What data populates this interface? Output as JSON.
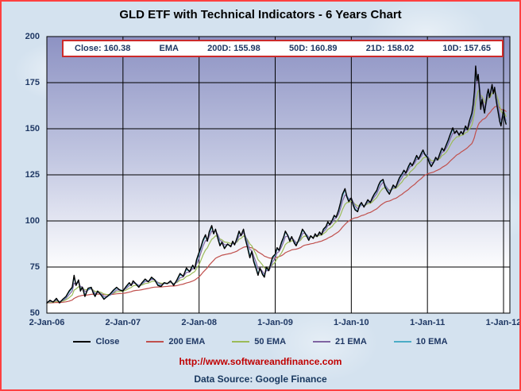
{
  "page": {
    "title": "GLD ETF with Technical Indicators - 6 Years Chart",
    "footer_url": "http://www.softwareandfinance.com",
    "footer_source": "Data Source: Google Finance"
  },
  "info_box": {
    "close_label": "Close: 160.38",
    "ema_label": "EMA",
    "d200": "200D: 155.98",
    "d50": "50D: 160.89",
    "d21": "21D: 158.02",
    "d10": "10D: 157.65"
  },
  "chart_data": {
    "type": "line",
    "title": "GLD ETF with Technical Indicators - 6 Years Chart",
    "ylim": [
      50,
      200
    ],
    "y_ticks": [
      50,
      75,
      100,
      125,
      150,
      175,
      200
    ],
    "x_tick_labels": [
      "2-Jan-06",
      "2-Jan-07",
      "2-Jan-08",
      "1-Jan-09",
      "1-Jan-10",
      "1-Jan-11",
      "1-Jan-12"
    ],
    "x_tick_months": [
      0,
      12,
      24,
      36,
      48,
      60,
      72
    ],
    "x_range_months": [
      0,
      73
    ],
    "grid": true,
    "legend_position": "bottom",
    "close_latest": 160.38,
    "ema_latest": {
      "200D": 155.98,
      "50D": 160.89,
      "21D": 158.02,
      "10D": 157.65
    },
    "series": [
      {
        "name": "Close",
        "color": "#000000",
        "kind": "close"
      },
      {
        "name": "200 EMA",
        "color": "#C0504D",
        "kind": "ema",
        "alpha": 0.07
      },
      {
        "name": "50 EMA",
        "color": "#9BBB59",
        "kind": "ema",
        "alpha": 0.25
      },
      {
        "name": "21 EMA",
        "color": "#8064A2",
        "kind": "ema",
        "alpha": 0.5
      },
      {
        "name": "10 EMA",
        "color": "#4BACC6",
        "kind": "ema",
        "alpha": 0.8
      }
    ],
    "points": [
      [
        0,
        55.5
      ],
      [
        0.5,
        57
      ],
      [
        1,
        56
      ],
      [
        1.5,
        58
      ],
      [
        2,
        55.5
      ],
      [
        2.5,
        57.5
      ],
      [
        3,
        59
      ],
      [
        3.5,
        62
      ],
      [
        4,
        64
      ],
      [
        4.3,
        70.5
      ],
      [
        4.6,
        65
      ],
      [
        5,
        68
      ],
      [
        5.3,
        62
      ],
      [
        5.6,
        64
      ],
      [
        6,
        59
      ],
      [
        6.5,
        63.5
      ],
      [
        7,
        64
      ],
      [
        7.3,
        61
      ],
      [
        7.6,
        59
      ],
      [
        8,
        62
      ],
      [
        8.5,
        60
      ],
      [
        9,
        57.5
      ],
      [
        9.5,
        59
      ],
      [
        10,
        60.5
      ],
      [
        10.5,
        62.5
      ],
      [
        11,
        64
      ],
      [
        11.5,
        62.5
      ],
      [
        12,
        62
      ],
      [
        12.5,
        64.5
      ],
      [
        13,
        66.5
      ],
      [
        13.3,
        65
      ],
      [
        13.6,
        67.5
      ],
      [
        14,
        66
      ],
      [
        14.5,
        64
      ],
      [
        15,
        66.5
      ],
      [
        15.5,
        68.5
      ],
      [
        16,
        67
      ],
      [
        16.5,
        69.5
      ],
      [
        17,
        68
      ],
      [
        17.5,
        65
      ],
      [
        18,
        64.5
      ],
      [
        18.5,
        66.5
      ],
      [
        19,
        66
      ],
      [
        19.5,
        67.5
      ],
      [
        20,
        65
      ],
      [
        20.5,
        68
      ],
      [
        21,
        71.5
      ],
      [
        21.5,
        70
      ],
      [
        22,
        74.5
      ],
      [
        22.5,
        72.5
      ],
      [
        23,
        76
      ],
      [
        23.3,
        74
      ],
      [
        23.6,
        79
      ],
      [
        24,
        83
      ],
      [
        24.3,
        86
      ],
      [
        24.6,
        89.5
      ],
      [
        25,
        92.5
      ],
      [
        25.3,
        89
      ],
      [
        25.6,
        94
      ],
      [
        26,
        97.5
      ],
      [
        26.3,
        93
      ],
      [
        26.6,
        95.5
      ],
      [
        27,
        90
      ],
      [
        27.3,
        86.5
      ],
      [
        27.6,
        88.5
      ],
      [
        28,
        85
      ],
      [
        28.5,
        87.5
      ],
      [
        29,
        86
      ],
      [
        29.3,
        89
      ],
      [
        29.6,
        87
      ],
      [
        30,
        91
      ],
      [
        30.3,
        94.5
      ],
      [
        30.6,
        92
      ],
      [
        31,
        95.5
      ],
      [
        31.3,
        90
      ],
      [
        31.6,
        86
      ],
      [
        32,
        80
      ],
      [
        32.3,
        83.5
      ],
      [
        32.6,
        78
      ],
      [
        33,
        74
      ],
      [
        33.3,
        70.5
      ],
      [
        33.6,
        74.5
      ],
      [
        34,
        71
      ],
      [
        34.3,
        69.5
      ],
      [
        34.6,
        75
      ],
      [
        35,
        73
      ],
      [
        35.3,
        77
      ],
      [
        35.6,
        80.5
      ],
      [
        36,
        82
      ],
      [
        36.3,
        85.5
      ],
      [
        36.6,
        84
      ],
      [
        37,
        88.5
      ],
      [
        37.3,
        91
      ],
      [
        37.6,
        94.5
      ],
      [
        38,
        92
      ],
      [
        38.3,
        89
      ],
      [
        38.6,
        91.5
      ],
      [
        39,
        88
      ],
      [
        39.3,
        86.5
      ],
      [
        39.6,
        89
      ],
      [
        40,
        92.5
      ],
      [
        40.3,
        95.5
      ],
      [
        40.6,
        94
      ],
      [
        41,
        91.5
      ],
      [
        41.3,
        89.5
      ],
      [
        41.6,
        92
      ],
      [
        42,
        90.5
      ],
      [
        42.3,
        93
      ],
      [
        42.6,
        91.5
      ],
      [
        43,
        94
      ],
      [
        43.3,
        92.5
      ],
      [
        43.6,
        95.5
      ],
      [
        44,
        97
      ],
      [
        44.3,
        99.5
      ],
      [
        44.6,
        98
      ],
      [
        45,
        100.5
      ],
      [
        45.3,
        103
      ],
      [
        45.6,
        102
      ],
      [
        46,
        106
      ],
      [
        46.3,
        110
      ],
      [
        46.6,
        114.5
      ],
      [
        47,
        117.5
      ],
      [
        47.3,
        113
      ],
      [
        47.6,
        110.5
      ],
      [
        48,
        112.5
      ],
      [
        48.3,
        108.5
      ],
      [
        48.6,
        106
      ],
      [
        49,
        105
      ],
      [
        49.3,
        108.5
      ],
      [
        49.6,
        110
      ],
      [
        50,
        107.5
      ],
      [
        50.3,
        109.5
      ],
      [
        50.6,
        111.5
      ],
      [
        51,
        110
      ],
      [
        51.3,
        112.5
      ],
      [
        51.6,
        114.5
      ],
      [
        52,
        116.5
      ],
      [
        52.3,
        119.5
      ],
      [
        52.6,
        121.5
      ],
      [
        53,
        122.5
      ],
      [
        53.3,
        118.5
      ],
      [
        53.6,
        116.5
      ],
      [
        54,
        114.5
      ],
      [
        54.3,
        117
      ],
      [
        54.6,
        119.5
      ],
      [
        55,
        118
      ],
      [
        55.3,
        121
      ],
      [
        55.6,
        123.5
      ],
      [
        56,
        125.5
      ],
      [
        56.3,
        127.5
      ],
      [
        56.6,
        126
      ],
      [
        57,
        129.5
      ],
      [
        57.3,
        131.5
      ],
      [
        57.6,
        130
      ],
      [
        58,
        133
      ],
      [
        58.3,
        135.5
      ],
      [
        58.6,
        133.5
      ],
      [
        59,
        136.5
      ],
      [
        59.3,
        138.5
      ],
      [
        59.6,
        136
      ],
      [
        60,
        134.5
      ],
      [
        60.3,
        131.5
      ],
      [
        60.6,
        129.5
      ],
      [
        61,
        132
      ],
      [
        61.3,
        134.5
      ],
      [
        61.6,
        133
      ],
      [
        62,
        137
      ],
      [
        62.3,
        139.5
      ],
      [
        62.6,
        138
      ],
      [
        63,
        141.5
      ],
      [
        63.3,
        144
      ],
      [
        63.6,
        147
      ],
      [
        64,
        150.5
      ],
      [
        64.3,
        147.5
      ],
      [
        64.6,
        149
      ],
      [
        65,
        146.5
      ],
      [
        65.3,
        148.5
      ],
      [
        65.6,
        147
      ],
      [
        66,
        151.5
      ],
      [
        66.3,
        149.5
      ],
      [
        66.6,
        154
      ],
      [
        67,
        158.5
      ],
      [
        67.2,
        163
      ],
      [
        67.4,
        170
      ],
      [
        67.6,
        184
      ],
      [
        67.8,
        176
      ],
      [
        68,
        179.5
      ],
      [
        68.2,
        171
      ],
      [
        68.4,
        160.5
      ],
      [
        68.6,
        166
      ],
      [
        68.8,
        162
      ],
      [
        69,
        158.5
      ],
      [
        69.2,
        163.5
      ],
      [
        69.4,
        168.5
      ],
      [
        69.6,
        171.5
      ],
      [
        69.8,
        167
      ],
      [
        70,
        170.5
      ],
      [
        70.2,
        174
      ],
      [
        70.4,
        169
      ],
      [
        70.6,
        172.5
      ],
      [
        70.8,
        166.5
      ],
      [
        71,
        162
      ],
      [
        71.2,
        158
      ],
      [
        71.4,
        154
      ],
      [
        71.6,
        151.5
      ],
      [
        71.8,
        156
      ],
      [
        72,
        160.5
      ],
      [
        72.2,
        155
      ],
      [
        72.4,
        152.5
      ]
    ]
  }
}
